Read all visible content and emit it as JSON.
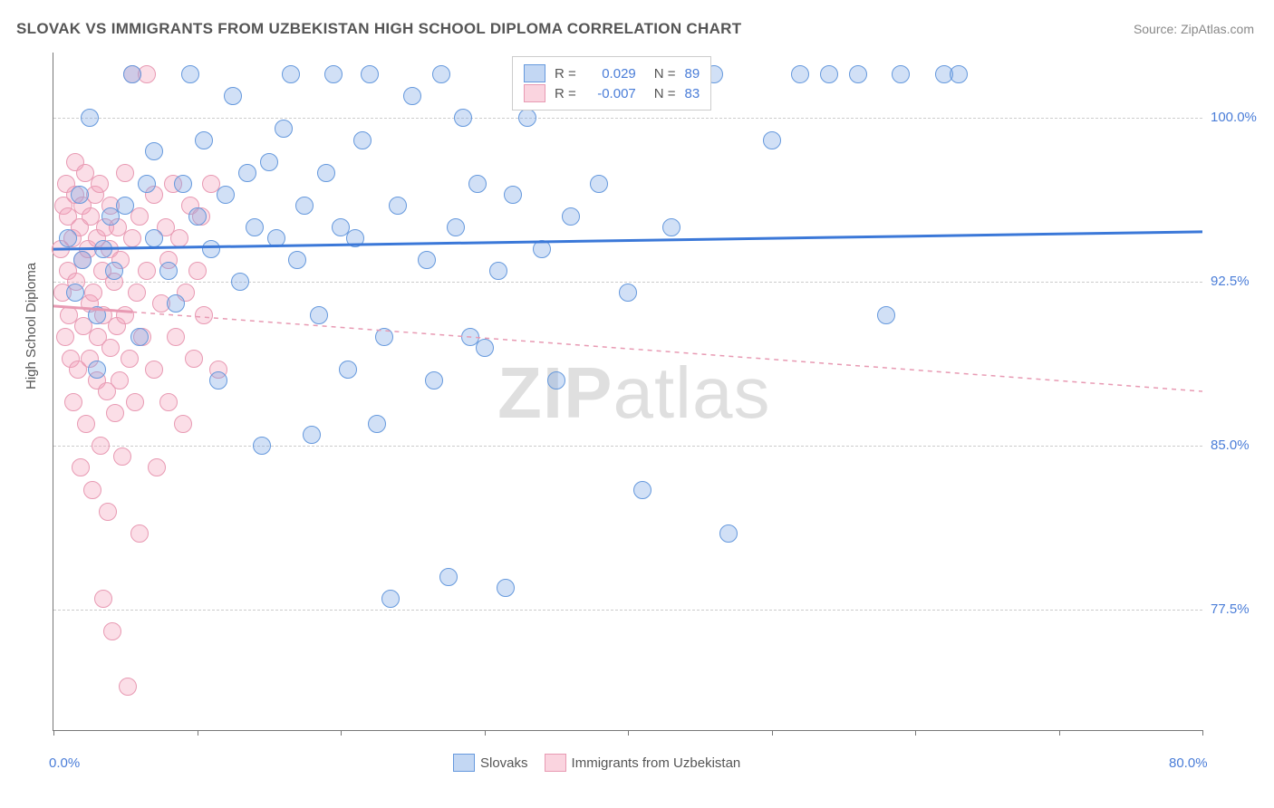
{
  "title": "SLOVAK VS IMMIGRANTS FROM UZBEKISTAN HIGH SCHOOL DIPLOMA CORRELATION CHART",
  "source": "Source: ZipAtlas.com",
  "ylabel": "High School Diploma",
  "watermark_zip": "ZIP",
  "watermark_atlas": "atlas",
  "chart": {
    "type": "scatter",
    "xlim": [
      0,
      80
    ],
    "ylim": [
      72,
      103
    ],
    "ytick_values": [
      77.5,
      85.0,
      92.5,
      100.0
    ],
    "ytick_labels": [
      "77.5%",
      "85.0%",
      "92.5%",
      "100.0%"
    ],
    "xtick_label_left": "0.0%",
    "xtick_label_right": "80.0%",
    "xtick_positions": [
      0,
      10,
      20,
      30,
      40,
      50,
      60,
      70,
      80
    ],
    "grid_color": "#cccccc",
    "background_color": "#ffffff",
    "marker_radius": 9,
    "marker_border_width": 1.5,
    "series": [
      {
        "name": "Slovaks",
        "fill": "rgba(122,167,229,0.35)",
        "border": "#6699dd",
        "line_color": "#3b78d8",
        "line_dash": "none",
        "line_width": 3,
        "R": "0.029",
        "N": "89",
        "trend": {
          "x1": 0,
          "y1": 94.0,
          "x2": 80,
          "y2": 94.8
        },
        "points": [
          [
            1,
            94.5
          ],
          [
            1.5,
            92
          ],
          [
            1.8,
            96.5
          ],
          [
            2,
            93.5
          ],
          [
            2.5,
            100
          ],
          [
            3,
            91
          ],
          [
            3,
            88.5
          ],
          [
            3.5,
            94
          ],
          [
            4,
            95.5
          ],
          [
            4.2,
            93
          ],
          [
            5,
            96
          ],
          [
            5.5,
            102
          ],
          [
            6,
            90
          ],
          [
            6.5,
            97
          ],
          [
            7,
            94.5
          ],
          [
            7,
            98.5
          ],
          [
            8,
            93
          ],
          [
            8.5,
            91.5
          ],
          [
            9,
            97
          ],
          [
            9.5,
            102
          ],
          [
            10,
            95.5
          ],
          [
            10.5,
            99
          ],
          [
            11,
            94
          ],
          [
            11.5,
            88
          ],
          [
            12,
            96.5
          ],
          [
            12.5,
            101
          ],
          [
            13,
            92.5
          ],
          [
            13.5,
            97.5
          ],
          [
            14,
            95
          ],
          [
            14.5,
            85
          ],
          [
            15,
            98
          ],
          [
            15.5,
            94.5
          ],
          [
            16,
            99.5
          ],
          [
            16.5,
            102
          ],
          [
            17,
            93.5
          ],
          [
            17.5,
            96
          ],
          [
            18,
            85.5
          ],
          [
            18.5,
            91
          ],
          [
            19,
            97.5
          ],
          [
            19.5,
            102
          ],
          [
            20,
            95
          ],
          [
            20.5,
            88.5
          ],
          [
            21,
            94.5
          ],
          [
            21.5,
            99
          ],
          [
            22,
            102
          ],
          [
            22.5,
            86
          ],
          [
            23,
            90
          ],
          [
            23.5,
            78
          ],
          [
            24,
            96
          ],
          [
            25,
            101
          ],
          [
            26,
            93.5
          ],
          [
            26.5,
            88
          ],
          [
            27,
            102
          ],
          [
            27.5,
            79
          ],
          [
            28,
            95
          ],
          [
            28.5,
            100
          ],
          [
            29,
            90
          ],
          [
            29.5,
            97
          ],
          [
            30,
            89.5
          ],
          [
            31,
            93
          ],
          [
            31.5,
            78.5
          ],
          [
            32,
            96.5
          ],
          [
            33,
            100
          ],
          [
            34,
            94
          ],
          [
            35,
            88
          ],
          [
            36,
            95.5
          ],
          [
            38,
            97
          ],
          [
            40,
            92
          ],
          [
            41,
            83
          ],
          [
            43,
            95
          ],
          [
            46,
            102
          ],
          [
            47,
            81
          ],
          [
            50,
            99
          ],
          [
            52,
            102
          ],
          [
            54,
            102
          ],
          [
            56,
            102
          ],
          [
            58,
            91
          ],
          [
            59,
            102
          ],
          [
            62,
            102
          ],
          [
            63,
            102
          ]
        ]
      },
      {
        "name": "Immigrants from Uzbekistan",
        "fill": "rgba(244,160,185,0.35)",
        "border": "#e89ab3",
        "line_color": "#e89ab3",
        "line_dash": "5,5",
        "line_width": 1.5,
        "R": "-0.007",
        "N": "83",
        "trend": {
          "x1": 0,
          "y1": 91.4,
          "x2": 80,
          "y2": 87.5
        },
        "trend_solid_until_x": 5.5,
        "points": [
          [
            0.5,
            94
          ],
          [
            0.6,
            92
          ],
          [
            0.7,
            96
          ],
          [
            0.8,
            90
          ],
          [
            0.9,
            97
          ],
          [
            1,
            93
          ],
          [
            1,
            95.5
          ],
          [
            1.1,
            91
          ],
          [
            1.2,
            89
          ],
          [
            1.3,
            94.5
          ],
          [
            1.4,
            87
          ],
          [
            1.5,
            96.5
          ],
          [
            1.5,
            98
          ],
          [
            1.6,
            92.5
          ],
          [
            1.7,
            88.5
          ],
          [
            1.8,
            95
          ],
          [
            1.9,
            84
          ],
          [
            2,
            93.5
          ],
          [
            2,
            96
          ],
          [
            2.1,
            90.5
          ],
          [
            2.2,
            97.5
          ],
          [
            2.3,
            86
          ],
          [
            2.4,
            94
          ],
          [
            2.5,
            91.5
          ],
          [
            2.5,
            89
          ],
          [
            2.6,
            95.5
          ],
          [
            2.7,
            83
          ],
          [
            2.8,
            92
          ],
          [
            2.9,
            96.5
          ],
          [
            3,
            88
          ],
          [
            3,
            94.5
          ],
          [
            3.1,
            90
          ],
          [
            3.2,
            97
          ],
          [
            3.3,
            85
          ],
          [
            3.4,
            93
          ],
          [
            3.5,
            78
          ],
          [
            3.5,
            91
          ],
          [
            3.6,
            95
          ],
          [
            3.7,
            87.5
          ],
          [
            3.8,
            82
          ],
          [
            3.9,
            94
          ],
          [
            4,
            89.5
          ],
          [
            4,
            96
          ],
          [
            4.1,
            76.5
          ],
          [
            4.2,
            92.5
          ],
          [
            4.3,
            86.5
          ],
          [
            4.4,
            90.5
          ],
          [
            4.5,
            95
          ],
          [
            4.6,
            88
          ],
          [
            4.7,
            93.5
          ],
          [
            4.8,
            84.5
          ],
          [
            5,
            91
          ],
          [
            5,
            97.5
          ],
          [
            5.2,
            74
          ],
          [
            5.3,
            89
          ],
          [
            5.5,
            94.5
          ],
          [
            5.5,
            102
          ],
          [
            5.7,
            87
          ],
          [
            5.8,
            92
          ],
          [
            6,
            95.5
          ],
          [
            6,
            81
          ],
          [
            6.2,
            90
          ],
          [
            6.5,
            93
          ],
          [
            6.5,
            102
          ],
          [
            7,
            88.5
          ],
          [
            7,
            96.5
          ],
          [
            7.2,
            84
          ],
          [
            7.5,
            91.5
          ],
          [
            7.8,
            95
          ],
          [
            8,
            87
          ],
          [
            8,
            93.5
          ],
          [
            8.3,
            97
          ],
          [
            8.5,
            90
          ],
          [
            8.8,
            94.5
          ],
          [
            9,
            86
          ],
          [
            9.2,
            92
          ],
          [
            9.5,
            96
          ],
          [
            9.8,
            89
          ],
          [
            10,
            93
          ],
          [
            10.3,
            95.5
          ],
          [
            10.5,
            91
          ],
          [
            11,
            97
          ],
          [
            11.5,
            88.5
          ]
        ]
      }
    ]
  },
  "legend_corr": {
    "rows": [
      {
        "swatch_fill": "rgba(122,167,229,0.45)",
        "swatch_border": "#6699dd",
        "R_label": "R =",
        "R_val": "0.029",
        "N_label": "N =",
        "N_val": "89"
      },
      {
        "swatch_fill": "rgba(244,160,185,0.45)",
        "swatch_border": "#e89ab3",
        "R_label": "R =",
        "R_val": "-0.007",
        "N_label": "N =",
        "N_val": "83"
      }
    ]
  },
  "legend_bottom": {
    "items": [
      {
        "swatch_fill": "rgba(122,167,229,0.45)",
        "swatch_border": "#6699dd",
        "label": "Slovaks"
      },
      {
        "swatch_fill": "rgba(244,160,185,0.45)",
        "swatch_border": "#e89ab3",
        "label": "Immigrants from Uzbekistan"
      }
    ]
  },
  "colors": {
    "text_primary": "#555555",
    "text_axis": "#4a7dd8",
    "axis_line": "#777777"
  }
}
